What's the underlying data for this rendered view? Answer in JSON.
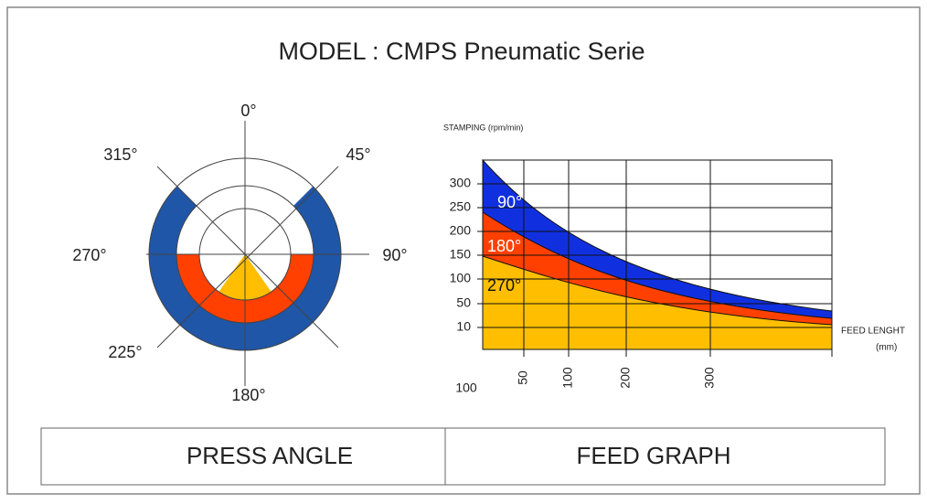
{
  "title": "MODEL : CMPS Pneumatic Serie",
  "press_angle": {
    "labels": [
      "0°",
      "45°",
      "90°",
      "180°",
      "225°",
      "270°",
      "315°"
    ]
  },
  "feed_graph": {
    "axis_title": "STAMPING (rpm/min)",
    "y_labels": [
      "300",
      "250",
      "200",
      "150",
      "100",
      "50",
      "10"
    ],
    "x_labels": [
      "50",
      "100",
      "200",
      "300"
    ],
    "x_start": "100",
    "feed_label": "FEED LENGHT",
    "feed_unit": "(mm)",
    "bands": [
      "90°",
      "180°",
      "270°"
    ]
  },
  "table": {
    "cells": [
      "PRESS ANGLE",
      "FEED GRAPH"
    ]
  }
}
